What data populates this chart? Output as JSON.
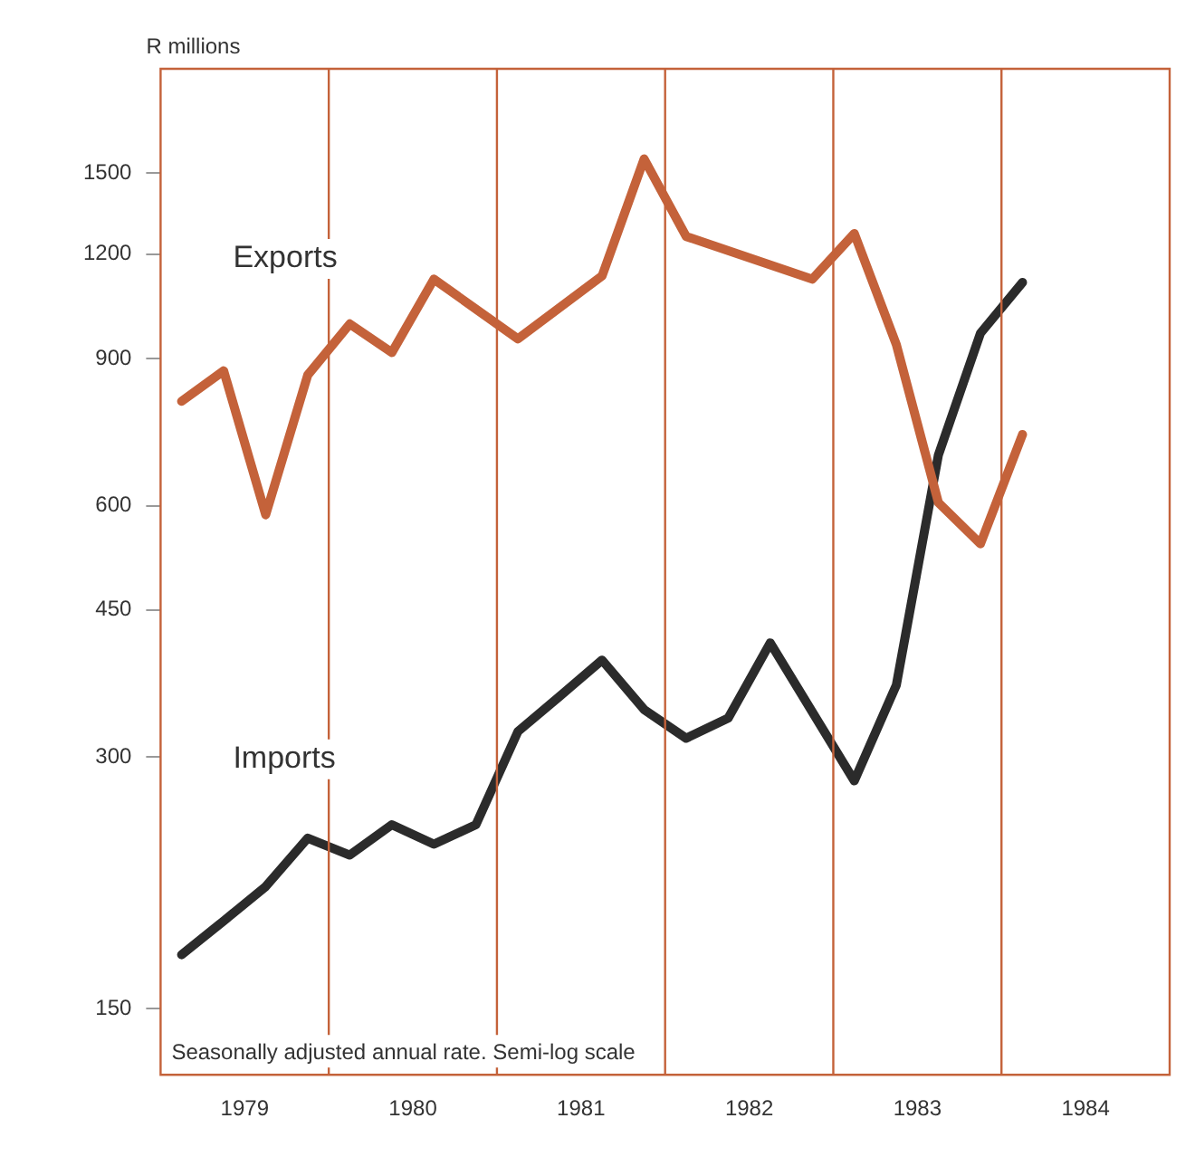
{
  "chart_data": {
    "type": "line",
    "ylabel": "R millions",
    "log": "y",
    "legend": false,
    "grid": false,
    "marker": "none",
    "line_style": "solid",
    "xlim": [
      1979,
      1985
    ],
    "ylim": [
      125,
      2000
    ],
    "xticks": [
      {
        "value": 1979.5,
        "label": "1979"
      },
      {
        "value": 1980.5,
        "label": "1980"
      },
      {
        "value": 1981.5,
        "label": "1981"
      },
      {
        "value": 1982.5,
        "label": "1982"
      },
      {
        "value": 1983.5,
        "label": "1983"
      },
      {
        "value": 1984.5,
        "label": "1984"
      }
    ],
    "yticks": [
      150,
      300,
      450,
      600,
      900,
      1200,
      1500
    ],
    "series": [
      {
        "name": "Exports",
        "color": "#c4623a",
        "x": [
          1979.125,
          1979.375,
          1979.625,
          1979.875,
          1980.125,
          1980.375,
          1980.625,
          1981.125,
          1981.625,
          1981.875,
          1982.125,
          1982.875,
          1983.125,
          1983.375,
          1983.625,
          1983.875,
          1984.125
        ],
        "values": [
          800,
          870,
          585,
          860,
          990,
          915,
          1120,
          950,
          1130,
          1560,
          1260,
          1120,
          1270,
          935,
          605,
          540,
          730
        ]
      },
      {
        "name": "Imports",
        "color": "#2b2b2b",
        "x": [
          1979.125,
          1979.375,
          1979.625,
          1979.875,
          1980.125,
          1980.375,
          1980.625,
          1980.875,
          1981.125,
          1981.375,
          1981.625,
          1981.875,
          1982.125,
          1982.375,
          1982.625,
          1983.125,
          1983.375,
          1983.625,
          1983.875,
          1984.125
        ],
        "values": [
          174,
          191,
          210,
          240,
          229,
          249,
          236,
          249,
          322,
          355,
          392,
          342,
          316,
          334,
          411,
          281,
          366,
          690,
          965,
          1110
        ]
      }
    ],
    "ref_lines": [
      {
        "axis": "x",
        "value": 1980,
        "color": "#c4623a"
      },
      {
        "axis": "x",
        "value": 1981,
        "color": "#c4623a"
      },
      {
        "axis": "x",
        "value": 1982,
        "color": "#c4623a"
      },
      {
        "axis": "x",
        "value": 1983,
        "color": "#c4623a"
      },
      {
        "axis": "x",
        "value": 1984,
        "color": "#c4623a"
      }
    ],
    "annotations": [
      "Seasonally adjusted annual rate. Semi-log scale"
    ]
  }
}
